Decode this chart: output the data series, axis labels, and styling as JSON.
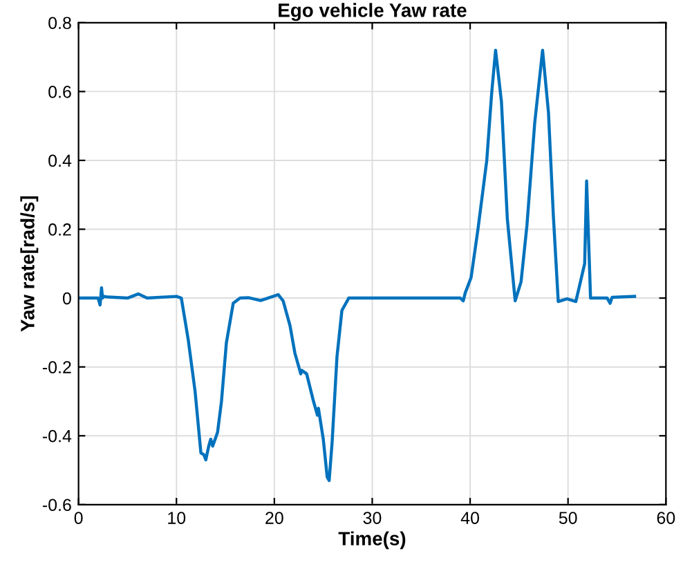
{
  "chart_data": {
    "type": "line",
    "title": "Ego vehicle Yaw rate",
    "xlabel": "Time(s)",
    "ylabel": "Yaw rate[rad/s]",
    "series": [
      {
        "color": "#0072bd",
        "x": [
          0,
          2.0,
          2.2,
          2.35,
          2.45,
          2.6,
          3.0,
          5.0,
          6.1,
          7.0,
          10.0,
          10.5,
          11.2,
          11.9,
          12.5,
          12.8,
          13.0,
          13.3,
          13.5,
          13.7,
          14.2,
          14.6,
          15.1,
          15.8,
          16.5,
          17.4,
          18.6,
          20.4,
          20.9,
          21.6,
          22.1,
          22.7,
          22.8,
          23.3,
          24.0,
          24.4,
          24.5,
          25.0,
          25.4,
          25.6,
          25.9,
          26.4,
          26.9,
          27.6,
          30,
          35,
          39.0,
          39.3,
          39.5,
          40.1,
          40.8,
          41.7,
          42.2,
          42.6,
          43.2,
          43.8,
          44.6,
          45.2,
          45.8,
          46.6,
          47.4,
          48.0,
          48.5,
          49.0,
          49.9,
          50.8,
          51.7,
          51.9,
          52.3,
          54.0,
          54.3,
          54.5,
          56.8
        ],
        "values": [
          0,
          0,
          -0.02,
          0.03,
          0.0,
          0.005,
          0.003,
          0.0,
          0.012,
          0.0,
          0.005,
          0,
          -0.12,
          -0.27,
          -0.45,
          -0.455,
          -0.47,
          -0.43,
          -0.41,
          -0.43,
          -0.39,
          -0.3,
          -0.13,
          -0.015,
          0,
          0.001,
          -0.007,
          0.01,
          -0.008,
          -0.08,
          -0.16,
          -0.22,
          -0.21,
          -0.22,
          -0.3,
          -0.34,
          -0.32,
          -0.41,
          -0.52,
          -0.53,
          -0.42,
          -0.17,
          -0.036,
          0,
          0,
          0,
          0,
          -0.008,
          0.015,
          0.06,
          0.2,
          0.4,
          0.595,
          0.72,
          0.57,
          0.23,
          -0.008,
          0.047,
          0.21,
          0.51,
          0.72,
          0.54,
          0.24,
          -0.01,
          -0.002,
          -0.01,
          0.1,
          0.34,
          0,
          0,
          -0.015,
          0.002,
          0.005
        ]
      }
    ],
    "xlim": [
      0,
      60
    ],
    "xticks": [
      0,
      10,
      20,
      30,
      40,
      50,
      60
    ],
    "ylim": [
      -0.6,
      0.8
    ],
    "yticks": [
      -0.6,
      -0.4,
      -0.2,
      0,
      0.2,
      0.4,
      0.6,
      0.8
    ],
    "grid": true,
    "marker": "none",
    "line_style": "solid"
  }
}
